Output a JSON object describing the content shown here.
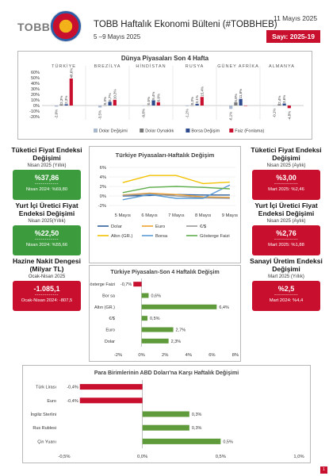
{
  "header": {
    "logo_text": "TOBB",
    "title": "TOBB Haftalık Ekonomi Bülteni (#TOBBHEB)",
    "dates": "5 –9 Mayıs 2025",
    "date": "11 Mayıs 2025",
    "issue": "Sayı: 2025-19"
  },
  "left_cards": [
    {
      "title": "Tüketici Fiyat Endeksi Değişimi",
      "subtitle": "Nisan 2025 (Yıllık)",
      "value": "%37,86",
      "dash": "------------",
      "previous": "Nisan 2024: %69,80",
      "color": "green"
    },
    {
      "title": "Yurt İçi Üretici Fiyat Endeksi Değişimi",
      "subtitle": "Nisan 2025(Yıllık)",
      "value": "%22,50",
      "dash": "------------",
      "previous": "Nisan 2024: %55,66",
      "color": "green"
    },
    {
      "title": "Hazine Nakit Dengesi (Milyar TL)",
      "subtitle": "Ocak-Nisan 2025",
      "value": "-1.085,1",
      "dash": "------------",
      "previous": "Ocak-Nisan 2024: -807,5",
      "color": "red"
    }
  ],
  "right_cards": [
    {
      "title": "Tüketici Fiyat Endeksi Değişimi",
      "subtitle": "Nisan 2025 (Aylık)",
      "value": "%3,00",
      "dash": "------------",
      "previous": "Mart 2025: %2,46",
      "color": "red"
    },
    {
      "title": "Yurt İçi Üretici Fiyat Endeksi Değişimi",
      "subtitle": "Nisan 2025 (Aylık)",
      "value": "%2,76",
      "dash": "------------",
      "previous": "Mart 2025: %1,88",
      "color": "red"
    },
    {
      "title": "Sanayi Üretim Endeksi Değişimi",
      "subtitle": "Mart 2025 (Yıllık)",
      "value": "%2,5",
      "dash": "------------",
      "previous": "Mart 2024: %4,4",
      "color": "red"
    }
  ],
  "colors": {
    "dolar": "#a9b8cc",
    "oynaklik": "#7a7a7a",
    "borsa": "#2e4a8c",
    "faiz": "#c8102e",
    "green": "#5f9b3a",
    "red": "#c8102e",
    "euro_line": "#f0a030",
    "altin_line": "#f2c200",
    "eurusd_line": "#9a9a9a",
    "borsa_line": "#5b9bd5",
    "gosterge_line": "#5fae4c",
    "dolar_line": "#2f5f9c"
  },
  "chart_data": [
    {
      "type": "bar",
      "title": "Dünya Piyasaları Son 4 Hafta",
      "categories": [
        "TÜRKİYE",
        "BREZİLYA",
        "HİNDİSTAN",
        "RUSYA",
        "GÜNEY AFRİKA",
        "ALMANYA"
      ],
      "ylim": [
        -20,
        60
      ],
      "yticks": [
        "60%",
        "50%",
        "40%",
        "30%",
        "20%",
        "10%",
        "0%",
        "-10%",
        "-20%"
      ],
      "series": [
        {
          "name": "Dolar Değişimi",
          "values": [
            -2.0,
            -3.5,
            -0.8,
            -1.2,
            -6.1,
            -0.1
          ]
        },
        {
          "name": "Dolar Oynaklık",
          "values": [
            2.3,
            0.3,
            0.5,
            0.3,
            5.8,
            2.4
          ]
        },
        {
          "name": "Borsa Değişim",
          "values": [
            2.3,
            6.7,
            9.4,
            3.1,
            11.8,
            3.6
          ]
        },
        {
          "name": "Faiz (Fonlama)",
          "values": [
            48.6,
            10.3,
            6.0,
            15.4,
            0.0,
            -4.8
          ]
        }
      ],
      "labels": [
        [
          "-2,0%",
          "2,3%",
          "2,3%",
          "48,6%"
        ],
        [
          "-3,5%",
          "0,3%",
          "6,7%",
          "10,3%"
        ],
        [
          "-0,8%",
          "0,5%",
          "9,4%",
          "6,0%"
        ],
        [
          "-1,2%",
          "0,3%",
          "3,1%",
          "15,4%"
        ],
        [
          "-6,1%",
          "5,8%",
          "11,8%",
          ""
        ],
        [
          "-0,1%",
          "2,4%",
          "3,6%",
          "-4,8%"
        ]
      ]
    },
    {
      "type": "line",
      "title": "Türkiye Piyasaları-Haftalık Değişim",
      "categories": [
        "5 Mayıs",
        "6 Mayıs",
        "7 Mayıs",
        "8 Mayıs",
        "9 Mayıs"
      ],
      "ylim": [
        -2,
        6
      ],
      "yticks": [
        "6%",
        "4%",
        "2%",
        "0%",
        "-2%"
      ],
      "series": [
        {
          "name": "Dolar",
          "values": [
            0.0,
            0.1,
            0.3,
            0.2,
            0.2
          ]
        },
        {
          "name": "Euro",
          "values": [
            0.2,
            0.6,
            0.3,
            -0.2,
            -0.3
          ]
        },
        {
          "name": "€/$",
          "values": [
            0.1,
            0.4,
            0.0,
            -0.4,
            -0.5
          ]
        },
        {
          "name": "Altın (GR.)",
          "values": [
            2.8,
            4.3,
            4.3,
            2.6,
            2.9
          ]
        },
        {
          "name": "Borsa",
          "values": [
            -0.8,
            0.3,
            -0.5,
            -0.5,
            2.3
          ]
        },
        {
          "name": "Gösterge Faizi",
          "values": [
            0.7,
            1.8,
            2.0,
            1.8,
            1.5
          ]
        }
      ]
    },
    {
      "type": "bar",
      "title": "Türkiye Piyasaları-Son 4 Haftalık Değişim",
      "categories": [
        "Gösterge Faizi",
        "Bor sa",
        "Altın (GR.)",
        "€/$",
        "Euro",
        "Dolar"
      ],
      "values": [
        -0.7,
        0.6,
        6.4,
        0.5,
        2.7,
        2.3
      ],
      "labels": [
        "-0,7%",
        "0,6%",
        "6,4%",
        "0,5%",
        "2,7%",
        "2,3%"
      ],
      "xlim": [
        -2,
        8
      ],
      "xticks": [
        "-2%",
        "0%",
        "2%",
        "4%",
        "6%",
        "8%"
      ]
    },
    {
      "type": "bar",
      "title": "Para Birimlerinin ABD Doları'na Karşı Haftalık Değişimi",
      "categories": [
        "Türk Lirası",
        "Euro",
        "İngiliz Sterlini",
        "Rus Rublesi",
        "Çin Yuanı"
      ],
      "values": [
        -0.4,
        -0.4,
        0.3,
        0.3,
        0.5
      ],
      "labels": [
        "-0,4%",
        "-0,4%",
        "0,3%",
        "0,3%",
        "0,5%"
      ],
      "xlim": [
        -0.5,
        1.0
      ],
      "xticks": [
        "-0,5%",
        "0,0%",
        "0,5%",
        "1,0%"
      ]
    }
  ],
  "page_number": "1"
}
